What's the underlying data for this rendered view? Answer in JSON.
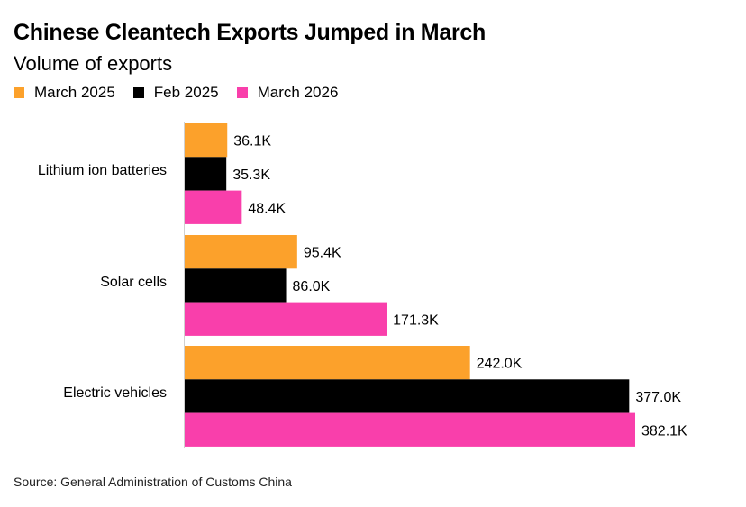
{
  "header": {
    "title": "Chinese Cleantech Exports Jumped in March",
    "subtitle": "Volume of exports"
  },
  "source": "Source: General Administration of Customs China",
  "chart_data": {
    "type": "bar",
    "orientation": "horizontal",
    "title": "Chinese Cleantech Exports Jumped in March",
    "subtitle": "Volume of exports",
    "categories": [
      "Lithium ion batteries",
      "Solar cells",
      "Electric vehicles"
    ],
    "series": [
      {
        "name": "March 2025",
        "color": "#FCA12B",
        "values": [
          36.1,
          95.4,
          242.0
        ],
        "labels": [
          "36.1K",
          "95.4K",
          "242.0K"
        ]
      },
      {
        "name": "Feb 2025",
        "color": "#000000",
        "values": [
          35.3,
          86.0,
          377.0
        ],
        "labels": [
          "35.3K",
          "86.0K",
          "377.0K"
        ]
      },
      {
        "name": "March 2026",
        "color": "#F93FAB",
        "values": [
          48.4,
          171.3,
          382.1
        ],
        "labels": [
          "48.4K",
          "171.3K",
          "382.1K"
        ]
      }
    ],
    "xlim": [
      0,
      382.1
    ],
    "legend_position": "top-left",
    "grid": false
  }
}
